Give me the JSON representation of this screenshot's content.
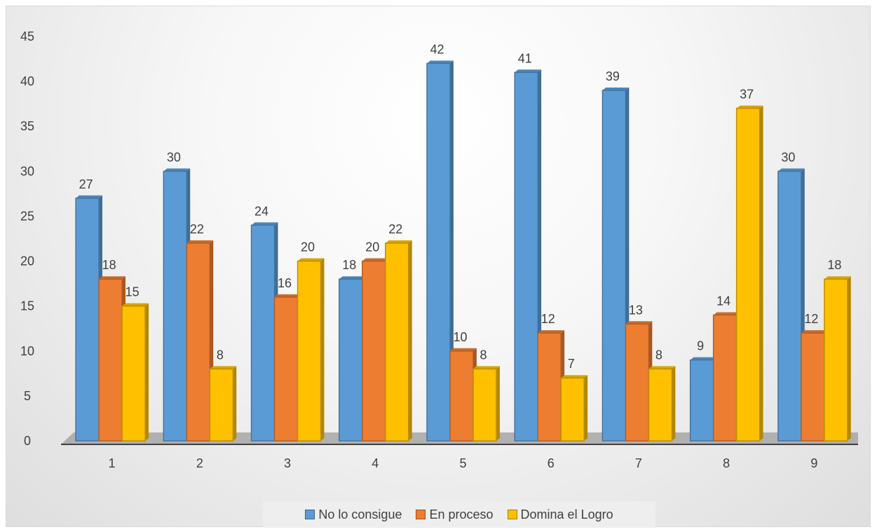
{
  "chart_data": {
    "type": "bar",
    "title": "",
    "xlabel": "",
    "ylabel": "",
    "categories": [
      "1",
      "2",
      "3",
      "4",
      "5",
      "6",
      "7",
      "8",
      "9"
    ],
    "series": [
      {
        "name": "No lo consigue",
        "color": "#5b9bd5",
        "values": [
          27,
          30,
          24,
          18,
          42,
          41,
          39,
          9,
          30
        ]
      },
      {
        "name": "En proceso",
        "color": "#ed7d31",
        "values": [
          18,
          22,
          16,
          20,
          10,
          12,
          13,
          14,
          12
        ]
      },
      {
        "name": "Domina el Logro",
        "color": "#ffc000",
        "values": [
          15,
          8,
          20,
          22,
          8,
          7,
          8,
          37,
          18
        ]
      }
    ],
    "ylim": [
      0,
      45
    ],
    "yticks": [
      "0",
      "5",
      "10",
      "15",
      "20",
      "25",
      "30",
      "35",
      "40",
      "45"
    ],
    "grid": false,
    "legend": "bottom"
  }
}
